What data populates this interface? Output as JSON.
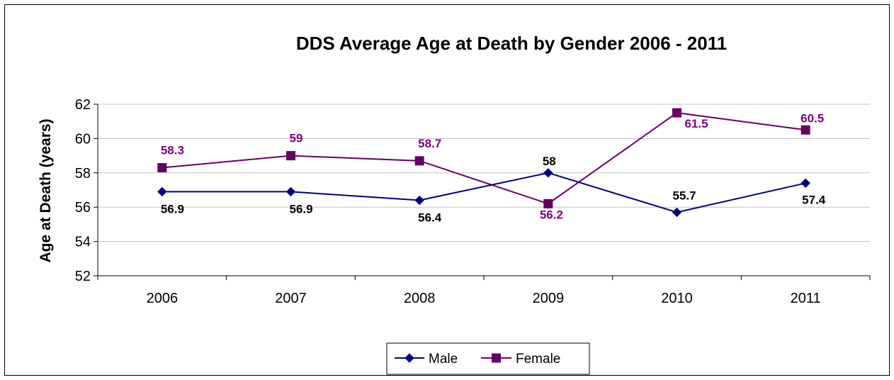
{
  "chart_data": {
    "type": "line",
    "title": "DDS Average Age at Death by Gender  2006 - 2011",
    "xlabel": "",
    "ylabel": "Age at Death (years)",
    "categories": [
      "2006",
      "2007",
      "2008",
      "2009",
      "2010",
      "2011"
    ],
    "ylim": [
      52,
      62
    ],
    "yticks": [
      52,
      54,
      56,
      58,
      60,
      62
    ],
    "grid": "horizontal",
    "legend": "bottom",
    "series": [
      {
        "name": "Male",
        "values": [
          56.9,
          56.9,
          56.4,
          58,
          55.7,
          57.4
        ],
        "labels": [
          "56.9",
          "56.9",
          "56.4",
          "58",
          "55.7",
          "57.4"
        ],
        "color": "#000080",
        "label_color": "#000000",
        "marker": "diamond"
      },
      {
        "name": "Female",
        "values": [
          58.3,
          59,
          58.7,
          56.2,
          61.5,
          60.5
        ],
        "labels": [
          "58.3",
          "59",
          "58.7",
          "56.2",
          "61.5",
          "60.5"
        ],
        "color": "#660066",
        "label_color": "#800080",
        "marker": "square"
      }
    ]
  }
}
